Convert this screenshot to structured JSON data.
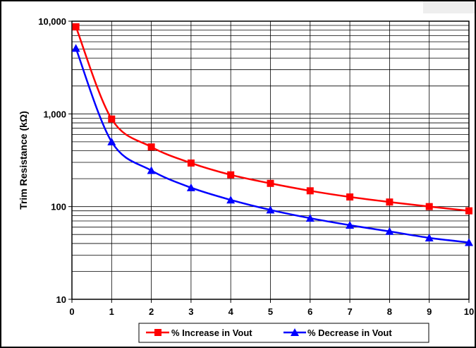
{
  "chart_data": {
    "type": "line",
    "title": "",
    "xlabel": "",
    "ylabel": "Trim Resistance (kΩ)",
    "x": [
      0.1,
      1,
      2,
      3,
      4,
      5,
      6,
      7,
      8,
      9,
      10
    ],
    "xlim": [
      0,
      10
    ],
    "ylim": [
      10,
      10000
    ],
    "yscale": "log",
    "grid": true,
    "legend_position": "bottom",
    "x_ticks": [
      "0",
      "1",
      "2",
      "3",
      "4",
      "5",
      "6",
      "7",
      "8",
      "9",
      "10"
    ],
    "y_ticks": [
      {
        "value": 10,
        "label": "10"
      },
      {
        "value": 100,
        "label": "100"
      },
      {
        "value": 1000,
        "label": "1,000"
      },
      {
        "value": 10000,
        "label": "10,000"
      }
    ],
    "series": [
      {
        "name": "% Increase in Vout",
        "color": "#ff0000",
        "marker": "square",
        "values": [
          8700,
          880,
          440,
          295,
          220,
          178,
          148,
          127,
          112,
          100,
          90
        ]
      },
      {
        "name": "% Decrease in Vout",
        "color": "#0000ff",
        "marker": "triangle",
        "values": [
          5100,
          500,
          245,
          160,
          118,
          92,
          75,
          63,
          54,
          46,
          41
        ]
      }
    ]
  }
}
